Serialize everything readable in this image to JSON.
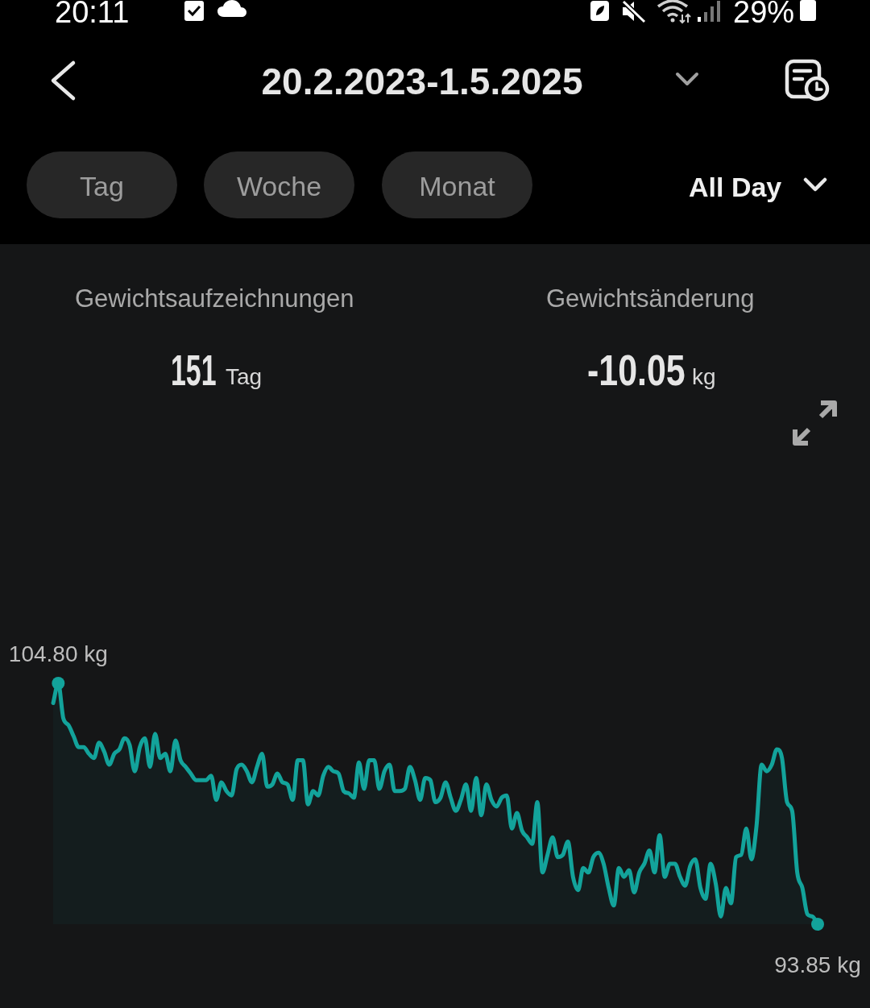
{
  "chart_data": {
    "type": "area",
    "title": "20.2.2023-1.5.2025",
    "annotations": [
      "20:11",
      "29%",
      "Tag",
      "Woche",
      "Monat",
      "All Day",
      "Gewichtsaufzeichnungen",
      "151",
      "Tag",
      "Gewichtsänderung",
      "-10.05",
      "kg"
    ],
    "categories": [
      null,
      null,
      null,
      null,
      null,
      null,
      null,
      null,
      null,
      null,
      null,
      null,
      null,
      null,
      null,
      null,
      null,
      null,
      null,
      null,
      null,
      null,
      null,
      null,
      null,
      null,
      null,
      null,
      null,
      null,
      null,
      null,
      null,
      null,
      null,
      null,
      null,
      null,
      null,
      null,
      null,
      null,
      null,
      null,
      null,
      null,
      null,
      null,
      null,
      null,
      null,
      null,
      null,
      null,
      null,
      null,
      null,
      null,
      null,
      null,
      null,
      null,
      null,
      null,
      null,
      null,
      null,
      null,
      null,
      null,
      null,
      null,
      null,
      null,
      null,
      null,
      null,
      null,
      null,
      null,
      null,
      null,
      null,
      null,
      null,
      null,
      null,
      null,
      null,
      null,
      null,
      null,
      null,
      null,
      null,
      null,
      null,
      null,
      null,
      null,
      null,
      null,
      null,
      null,
      null,
      null,
      null,
      null,
      null,
      null,
      null,
      null,
      null,
      null,
      null,
      null,
      null,
      null,
      null,
      null,
      null,
      null,
      null,
      null,
      null,
      null,
      null,
      null,
      null,
      null,
      null,
      null,
      null,
      null,
      null,
      null,
      null,
      null,
      null,
      null,
      null,
      null,
      null,
      null,
      null,
      null,
      null,
      null,
      null,
      null,
      null
    ],
    "series": [
      {
        "color": "#13a39b",
        "values": [
          103.9,
          104.8,
          103.2,
          102.9,
          102.4,
          101.9,
          101.9,
          101.6,
          101.4,
          102.1,
          101.7,
          101.1,
          101.6,
          101.8,
          102.3,
          102.0,
          100.8,
          101.9,
          102.3,
          101.0,
          102.5,
          101.4,
          101.6,
          100.8,
          102.2,
          101.3,
          101.0,
          100.7,
          100.4,
          100.4,
          100.4,
          100.6,
          99.5,
          100.3,
          99.9,
          99.7,
          100.9,
          101.1,
          100.8,
          100.3,
          101.0,
          101.6,
          100.1,
          100.2,
          100.7,
          100.3,
          100.2,
          99.5,
          101.3,
          101.3,
          99.3,
          99.9,
          99.7,
          100.6,
          101.0,
          100.8,
          100.7,
          99.9,
          99.8,
          99.6,
          101.2,
          100.0,
          101.3,
          101.3,
          100.0,
          100.8,
          101.1,
          99.9,
          99.9,
          100.0,
          101.0,
          100.4,
          99.5,
          100.5,
          100.4,
          99.4,
          99.6,
          100.3,
          99.6,
          99.0,
          99.5,
          100.2,
          99.0,
          100.5,
          98.8,
          100.2,
          99.5,
          99.2,
          99.6,
          99.7,
          98.2,
          98.9,
          98.1,
          97.8,
          97.5,
          99.4,
          96.2,
          97.0,
          97.8,
          96.9,
          97.0,
          97.6,
          96.0,
          95.4,
          96.4,
          96.2,
          96.9,
          97.1,
          96.6,
          95.5,
          94.7,
          96.4,
          96.0,
          96.3,
          95.3,
          96.2,
          96.6,
          97.2,
          96.2,
          97.9,
          96.0,
          96.6,
          96.6,
          96.0,
          95.6,
          96.5,
          96.8,
          95.5,
          95.0,
          96.6,
          95.7,
          94.2,
          95.5,
          94.8,
          96.9,
          97.0,
          98.2,
          96.8,
          98.3,
          101.1,
          100.8,
          101.1,
          101.8,
          101.4,
          99.4,
          99.0,
          96.2,
          95.5,
          94.3,
          94.2,
          93.85
        ],
        "value_labels": [
          null,
          "104.80 kg",
          null,
          null,
          null,
          null,
          null,
          null,
          null,
          null,
          null,
          null,
          null,
          null,
          null,
          null,
          null,
          null,
          null,
          null,
          null,
          null,
          null,
          null,
          null,
          null,
          null,
          null,
          null,
          null,
          null,
          null,
          null,
          null,
          null,
          null,
          null,
          null,
          null,
          null,
          null,
          null,
          null,
          null,
          null,
          null,
          null,
          null,
          null,
          null,
          null,
          null,
          null,
          null,
          null,
          null,
          null,
          null,
          null,
          null,
          null,
          null,
          null,
          null,
          null,
          null,
          null,
          null,
          null,
          null,
          null,
          null,
          null,
          null,
          null,
          null,
          null,
          null,
          null,
          null,
          null,
          null,
          null,
          null,
          null,
          null,
          null,
          null,
          null,
          null,
          null,
          null,
          null,
          null,
          null,
          null,
          null,
          null,
          null,
          null,
          null,
          null,
          null,
          null,
          null,
          null,
          null,
          null,
          null,
          null,
          null,
          null,
          null,
          null,
          null,
          null,
          null,
          null,
          null,
          null,
          null,
          null,
          null,
          null,
          null,
          null,
          null,
          null,
          null,
          null,
          null,
          null,
          null,
          null,
          null,
          null,
          null,
          null,
          null,
          null,
          null,
          null,
          null,
          null,
          null,
          null,
          null,
          null,
          null,
          null,
          "93.85 kg"
        ]
      }
    ],
    "tick_labels": false
  }
}
